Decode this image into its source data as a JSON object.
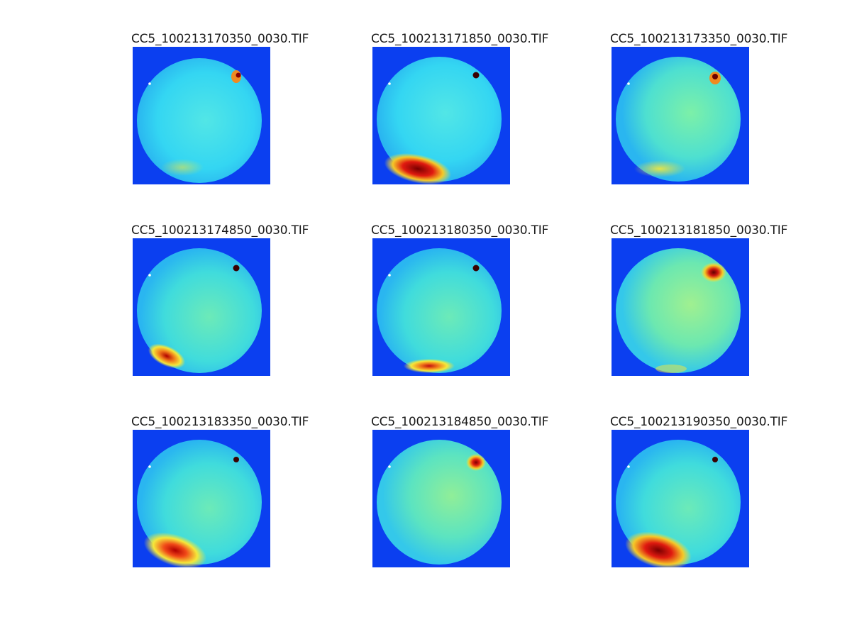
{
  "figure": {
    "panels": [
      {
        "title": "CC5_100213170350_0030.TIF",
        "hotspot": "bottom-weak"
      },
      {
        "title": "CC5_100213171850_0030.TIF",
        "hotspot": "bottom-strong"
      },
      {
        "title": "CC5_100213173350_0030.TIF",
        "hotspot": "bottom-weak"
      },
      {
        "title": "CC5_100213174850_0030.TIF",
        "hotspot": "bottom-left"
      },
      {
        "title": "CC5_100213180350_0030.TIF",
        "hotspot": "bottom-left"
      },
      {
        "title": "CC5_100213181850_0030.TIF",
        "hotspot": "top-right"
      },
      {
        "title": "CC5_100213183350_0030.TIF",
        "hotspot": "bottom-left-strong"
      },
      {
        "title": "CC5_100213184850_0030.TIF",
        "hotspot": "top-right"
      },
      {
        "title": "CC5_100213190350_0030.TIF",
        "hotspot": "bottom-left-strong"
      }
    ]
  },
  "colors": {
    "background_blue": "#0b3ff0",
    "disk_cyan": "#34d6f2",
    "disk_green": "#7cf0a8",
    "hot_yellow": "#f5e83a",
    "hot_red": "#c01010"
  }
}
